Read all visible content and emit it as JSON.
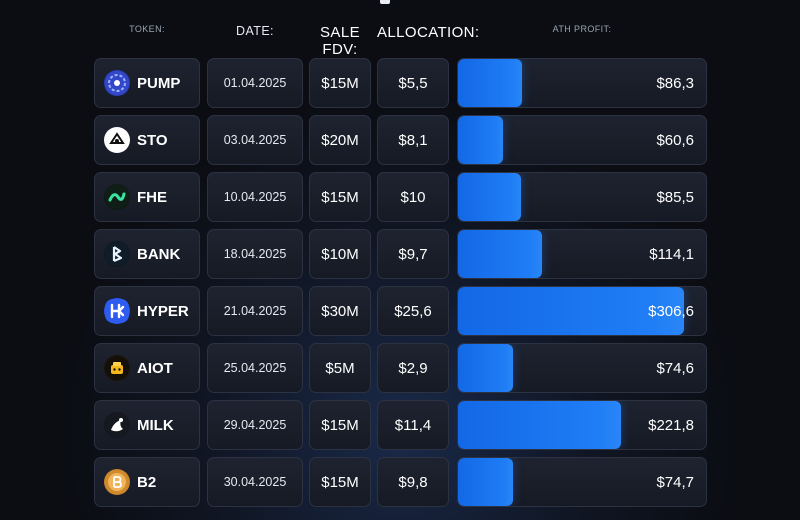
{
  "headers": {
    "token": "TOKEN:",
    "date": "DATE:",
    "sale_fdv": "SALE FDV:",
    "allocation": "ALLOCATION:",
    "ath_profit": "ATH PROFIT:"
  },
  "max_profit": 306.6,
  "rows": [
    {
      "symbol": "PUMP",
      "date": "01.04.2025",
      "fdv": "$15M",
      "allocation": "$5,5",
      "profit": "$86,3",
      "profit_value": 86.3,
      "icon": "pump-logo-icon"
    },
    {
      "symbol": "STO",
      "date": "03.04.2025",
      "fdv": "$20M",
      "allocation": "$8,1",
      "profit": "$60,6",
      "profit_value": 60.6,
      "icon": "sto-logo-icon"
    },
    {
      "symbol": "FHE",
      "date": "10.04.2025",
      "fdv": "$15M",
      "allocation": "$10",
      "profit": "$85,5",
      "profit_value": 85.5,
      "icon": "fhe-logo-icon"
    },
    {
      "symbol": "BANK",
      "date": "18.04.2025",
      "fdv": "$10M",
      "allocation": "$9,7",
      "profit": "$114,1",
      "profit_value": 114.1,
      "icon": "bank-logo-icon"
    },
    {
      "symbol": "HYPER",
      "date": "21.04.2025",
      "fdv": "$30M",
      "allocation": "$25,6",
      "profit": "$306,6",
      "profit_value": 306.6,
      "icon": "hyper-logo-icon"
    },
    {
      "symbol": "AIOT",
      "date": "25.04.2025",
      "fdv": "$5M",
      "allocation": "$2,9",
      "profit": "$74,6",
      "profit_value": 74.6,
      "icon": "aiot-logo-icon"
    },
    {
      "symbol": "MILK",
      "date": "29.04.2025",
      "fdv": "$15M",
      "allocation": "$11,4",
      "profit": "$221,8",
      "profit_value": 221.8,
      "icon": "milk-logo-icon"
    },
    {
      "symbol": "B2",
      "date": "30.04.2025",
      "fdv": "$15M",
      "allocation": "$9,8",
      "profit": "$74,7",
      "profit_value": 74.7,
      "icon": "b2-logo-icon"
    }
  ],
  "colors": {
    "bar": "#1f7df5",
    "cell_bg": "#1a1f2b",
    "cell_border": "#2c3242",
    "header_text": "#9aa3b2"
  }
}
